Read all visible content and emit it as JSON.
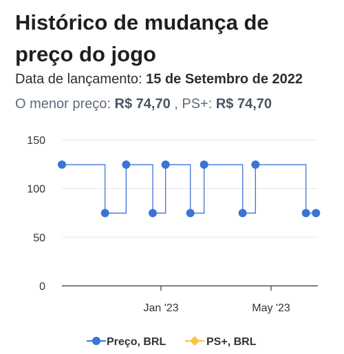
{
  "header": {
    "title": "Histórico de mudança de preço do jogo",
    "release_label": "Data de lançamento:",
    "release_date": "15 de Setembro de 2022",
    "lowest_label": "O menor preço:",
    "lowest_price": "R$ 74,70",
    "psplus_label": ", PS+:",
    "psplus_price": "R$ 74,70"
  },
  "colors": {
    "price_series": "#3c73d6",
    "psplus_series": "#f6c443",
    "grid": "#e6e6e6",
    "axis": "#333333"
  },
  "chart_data": {
    "type": "line",
    "step": true,
    "ylim": [
      0,
      150
    ],
    "yticks": [
      0,
      50,
      100,
      150
    ],
    "xlim": [
      "2022-09-15",
      "2023-06-21"
    ],
    "xticks": [
      {
        "date": "2023-01-01",
        "label": "Jan '23"
      },
      {
        "date": "2023-05-01",
        "label": "May '23"
      }
    ],
    "grid": true,
    "legend_position": "bottom",
    "series": [
      {
        "name": "Preço, BRL",
        "color": "#3c73d6",
        "points": [
          {
            "x": "2022-09-15",
            "y": 124.5
          },
          {
            "x": "2022-11-01",
            "y": 74.7
          },
          {
            "x": "2022-11-24",
            "y": 124.5
          },
          {
            "x": "2022-12-23",
            "y": 74.7
          },
          {
            "x": "2023-01-06",
            "y": 124.5
          },
          {
            "x": "2023-02-02",
            "y": 74.7
          },
          {
            "x": "2023-02-17",
            "y": 124.5
          },
          {
            "x": "2023-03-31",
            "y": 74.7
          },
          {
            "x": "2023-04-14",
            "y": 124.5
          },
          {
            "x": "2023-06-08",
            "y": 74.7
          },
          {
            "x": "2023-06-19",
            "y": 74.7
          }
        ]
      },
      {
        "name": "PS+, BRL",
        "color": "#f6c443",
        "points": []
      }
    ]
  }
}
